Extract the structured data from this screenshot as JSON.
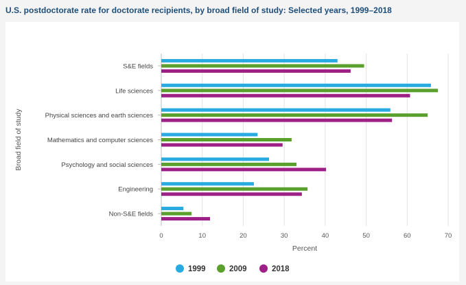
{
  "title": "U.S. postdoctorate rate for doctorate recipients, by broad field of study: Selected years, 1999–2018",
  "chart_data": {
    "type": "bar",
    "orientation": "horizontal",
    "title": "U.S. postdoctorate rate for doctorate recipients, by broad field of study: Selected years, 1999–2018",
    "xlabel": "Percent",
    "ylabel": "Broad field of study",
    "xlim": [
      0,
      70
    ],
    "xticks": [
      0,
      10,
      20,
      30,
      40,
      50,
      60,
      70
    ],
    "grid": true,
    "legend_position": "bottom",
    "categories": [
      "S&E fields",
      "Life sciences",
      "Physical sciences and earth sciences",
      "Mathematics and computer sciences",
      "Psychology and social sciences",
      "Engineering",
      "Non-S&E fields"
    ],
    "series": [
      {
        "name": "1999",
        "color": "#29abe2",
        "values": [
          43.0,
          65.8,
          55.9,
          23.5,
          26.3,
          22.6,
          5.4
        ]
      },
      {
        "name": "2009",
        "color": "#5aa02c",
        "values": [
          49.5,
          67.5,
          65.0,
          31.8,
          33.0,
          35.7,
          7.4
        ]
      },
      {
        "name": "2018",
        "color": "#9e1f85",
        "values": [
          46.2,
          60.7,
          56.3,
          29.6,
          40.2,
          34.3,
          11.9
        ]
      }
    ]
  }
}
